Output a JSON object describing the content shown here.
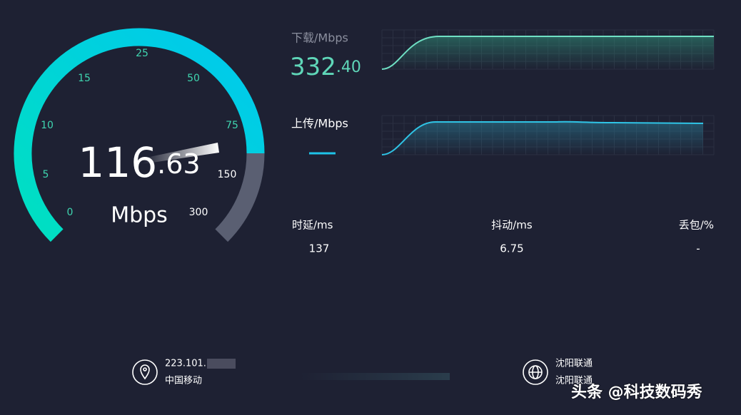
{
  "gauge": {
    "ticks": [
      "0",
      "5",
      "10",
      "15",
      "25",
      "50",
      "75",
      "150",
      "300"
    ],
    "speed_integer": "116",
    "speed_decimal": ".63",
    "unit": "Mbps"
  },
  "download": {
    "label": "下载/Mbps",
    "value_integer": "332",
    "value_decimal": ".40"
  },
  "upload": {
    "label": "上传/Mbps"
  },
  "stats": [
    {
      "label": "时延/ms",
      "value": "137"
    },
    {
      "label": "抖动/ms",
      "value": "6.75"
    },
    {
      "label": "丢包/%",
      "value": "-"
    }
  ],
  "footer": {
    "ip": "223.101.",
    "isp": "中国移动",
    "server_city": "沈阳联通",
    "server_isp": "沈阳联通"
  },
  "watermark": "头条 @科技数码秀"
}
